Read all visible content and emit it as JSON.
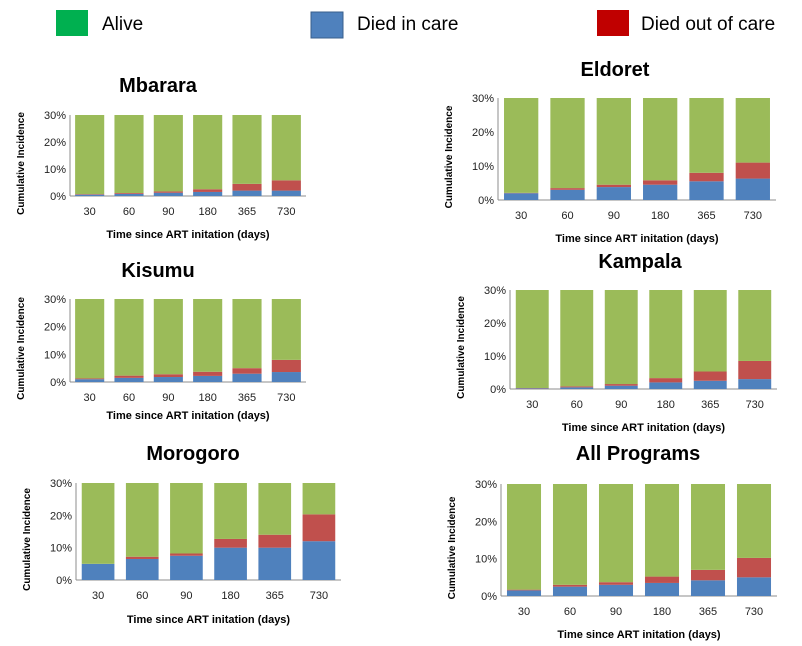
{
  "legend": {
    "items": [
      {
        "label": "Alive",
        "color": "#9bbb59",
        "swatch": "#00b050"
      },
      {
        "label": "Died in care",
        "color": "#4f81bd",
        "swatch": "#4f81bd"
      },
      {
        "label": "Died out of care",
        "color": "#c0504d",
        "swatch": "#c00000"
      }
    ]
  },
  "chart_data": [
    {
      "type": "bar",
      "title": "Mbarara",
      "xlabel": "Time since ART initation (days)",
      "ylabel": "Cumulative Incidence",
      "categories": [
        "30",
        "60",
        "90",
        "180",
        "365",
        "730"
      ],
      "yticks": [
        "0%",
        "10%",
        "20%",
        "30%"
      ],
      "ylim": [
        0,
        30
      ],
      "stacked": true,
      "series": [
        {
          "name": "Died in care",
          "values": [
            0.5,
            0.8,
            1.2,
            1.5,
            2.0,
            2.0
          ]
        },
        {
          "name": "Died out of care",
          "values": [
            0.2,
            0.3,
            0.5,
            1.0,
            2.5,
            3.8
          ]
        },
        {
          "name": "Alive",
          "values": [
            29.3,
            28.9,
            28.3,
            27.5,
            25.5,
            24.2
          ]
        }
      ]
    },
    {
      "type": "bar",
      "title": "Eldoret",
      "xlabel": "Time since ART initation (days)",
      "ylabel": "Cumulative Incidence",
      "categories": [
        "30",
        "60",
        "90",
        "180",
        "365",
        "730"
      ],
      "yticks": [
        "0%",
        "10%",
        "20%",
        "30%"
      ],
      "ylim": [
        0,
        30
      ],
      "stacked": true,
      "series": [
        {
          "name": "Died in care",
          "values": [
            2.0,
            3.0,
            3.8,
            4.5,
            5.5,
            6.3
          ]
        },
        {
          "name": "Died out of care",
          "values": [
            0.1,
            0.5,
            0.7,
            1.3,
            2.5,
            4.7
          ]
        },
        {
          "name": "Alive",
          "values": [
            27.9,
            26.5,
            25.5,
            24.2,
            22.0,
            19.0
          ]
        }
      ]
    },
    {
      "type": "bar",
      "title": "Kisumu",
      "xlabel": "Time since ART initation (days)",
      "ylabel": "Cumulative Incidence",
      "categories": [
        "30",
        "60",
        "90",
        "180",
        "365",
        "730"
      ],
      "yticks": [
        "0%",
        "10%",
        "20%",
        "30%"
      ],
      "ylim": [
        0,
        30
      ],
      "stacked": true,
      "series": [
        {
          "name": "Died in care",
          "values": [
            1.0,
            1.5,
            1.8,
            2.2,
            3.0,
            3.6
          ]
        },
        {
          "name": "Died out of care",
          "values": [
            0.3,
            0.8,
            1.0,
            1.5,
            2.0,
            4.4
          ]
        },
        {
          "name": "Alive",
          "values": [
            28.7,
            27.7,
            27.2,
            26.3,
            25.0,
            22.0
          ]
        }
      ]
    },
    {
      "type": "bar",
      "title": "Kampala",
      "xlabel": "Time since ART initation (days)",
      "ylabel": "Cumulative Incidence",
      "categories": [
        "30",
        "60",
        "90",
        "180",
        "365",
        "730"
      ],
      "yticks": [
        "0%",
        "10%",
        "20%",
        "30%"
      ],
      "ylim": [
        0,
        30
      ],
      "stacked": true,
      "series": [
        {
          "name": "Died in care",
          "values": [
            0.2,
            0.5,
            1.0,
            2.0,
            2.5,
            3.0
          ]
        },
        {
          "name": "Died out of care",
          "values": [
            0.1,
            0.3,
            0.5,
            1.3,
            2.8,
            5.5
          ]
        },
        {
          "name": "Alive",
          "values": [
            29.7,
            29.2,
            28.5,
            26.7,
            24.7,
            21.5
          ]
        }
      ]
    },
    {
      "type": "bar",
      "title": "Morogoro",
      "xlabel": "Time since ART initation (days)",
      "ylabel": "Cumulative Incidence",
      "categories": [
        "30",
        "60",
        "90",
        "180",
        "365",
        "730"
      ],
      "yticks": [
        "0%",
        "10%",
        "20%",
        "30%"
      ],
      "ylim": [
        0,
        30
      ],
      "stacked": true,
      "series": [
        {
          "name": "Died in care",
          "values": [
            5.0,
            6.5,
            7.5,
            10.0,
            10.0,
            12.0
          ]
        },
        {
          "name": "Died out of care",
          "values": [
            0.0,
            0.7,
            0.7,
            2.7,
            4.0,
            8.3
          ]
        },
        {
          "name": "Alive",
          "values": [
            25.0,
            22.8,
            21.8,
            17.3,
            16.0,
            9.7
          ]
        }
      ]
    },
    {
      "type": "bar",
      "title": "All Programs",
      "xlabel": "Time since ART initation (days)",
      "ylabel": "Cumulative Incidence",
      "categories": [
        "30",
        "60",
        "90",
        "180",
        "365",
        "730"
      ],
      "yticks": [
        "0%",
        "10%",
        "20%",
        "30%"
      ],
      "ylim": [
        0,
        30
      ],
      "stacked": true,
      "series": [
        {
          "name": "Died in care",
          "values": [
            1.5,
            2.5,
            3.0,
            3.5,
            4.2,
            5.0
          ]
        },
        {
          "name": "Died out of care",
          "values": [
            0.2,
            0.5,
            0.7,
            1.7,
            2.8,
            5.2
          ]
        },
        {
          "name": "Alive",
          "values": [
            28.3,
            27.0,
            26.3,
            24.8,
            23.0,
            19.8
          ]
        }
      ]
    }
  ]
}
